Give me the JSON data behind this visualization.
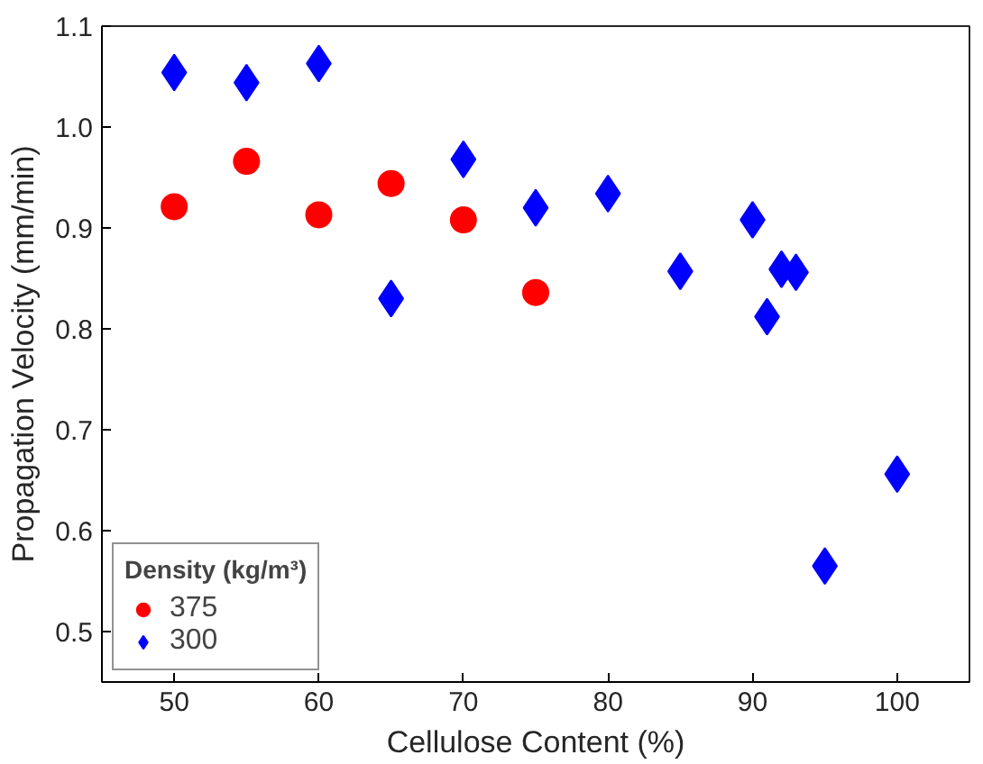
{
  "chart_data": {
    "type": "scatter",
    "xlabel": "Cellulose Content (%)",
    "ylabel": "Propagation Velocity (mm/min)",
    "legend_title": "Density (kg/m³)",
    "xlim": [
      45,
      105
    ],
    "xticks": [
      50,
      60,
      70,
      80,
      90,
      100
    ],
    "ylim": [
      0.45,
      1.1
    ],
    "yticks": [
      {
        "value": 0.5,
        "label": "0.5"
      },
      {
        "value": 0.6,
        "label": "0.6"
      },
      {
        "value": 0.7,
        "label": "0.7"
      },
      {
        "value": 0.8,
        "label": "0.8"
      },
      {
        "value": 0.9,
        "label": "0.9"
      },
      {
        "value": 1.0,
        "label": "1.0"
      },
      {
        "value": 1.1,
        "label": "1.1"
      }
    ],
    "grid": false,
    "legend": "bottom left",
    "series": [
      {
        "name": "375",
        "color": "#ff0000",
        "marker": "circle",
        "x": [
          50,
          55,
          60,
          65,
          70,
          75
        ],
        "values": [
          0.921,
          0.966,
          0.913,
          0.944,
          0.908,
          0.836
        ]
      },
      {
        "name": "300",
        "color": "#0000ff",
        "marker": "diamond",
        "x": [
          50,
          55,
          60,
          65,
          70,
          75,
          80,
          85,
          90,
          91,
          92,
          93,
          95,
          100
        ],
        "values": [
          1.054,
          1.044,
          1.063,
          0.83,
          0.968,
          0.92,
          0.934,
          0.857,
          0.908,
          0.812,
          0.859,
          0.856,
          0.565,
          0.656
        ]
      }
    ]
  }
}
